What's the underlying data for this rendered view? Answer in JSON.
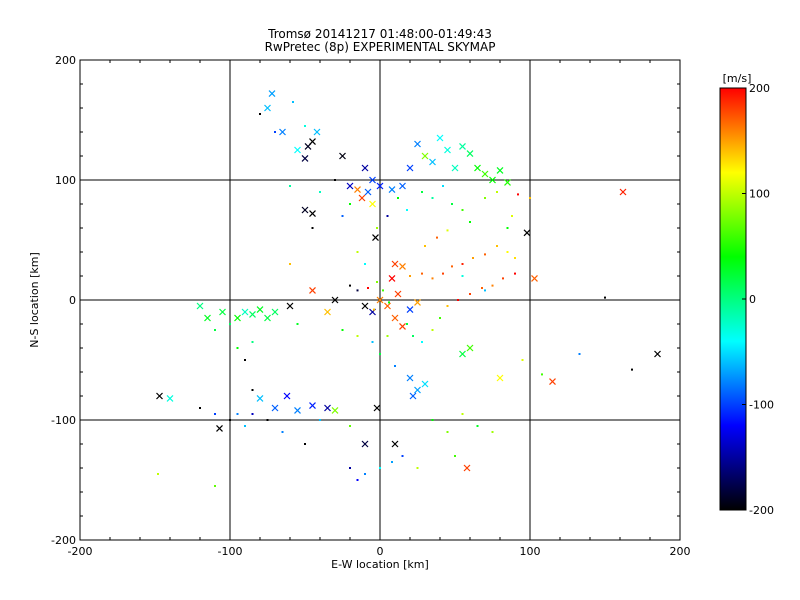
{
  "chart_data": {
    "type": "scatter",
    "title": "Tromsø 20141217 01:48:00-01:49:43",
    "subtitle": "RwPretec (8p) EXPERIMENTAL SKYMAP",
    "xlabel": "E-W location [km]",
    "ylabel": "N-S location [km]",
    "xlim": [
      -200,
      200
    ],
    "ylim": [
      -200,
      200
    ],
    "xticks": [
      -200,
      -100,
      0,
      100,
      200
    ],
    "yticks": [
      -200,
      -100,
      0,
      100,
      200
    ],
    "grid_lines": [
      -100,
      0,
      100
    ],
    "colorbar": {
      "label": "[m/s]",
      "range": [
        -200,
        200
      ],
      "ticks": [
        200,
        100,
        0,
        -100,
        -200
      ],
      "colors": [
        "#ff0000",
        "#ffff00",
        "#00ff00",
        "#00ffff",
        "#0000ff",
        "#000000"
      ]
    },
    "series": [
      {
        "name": "x-markers",
        "marker": "x",
        "points": [
          [
            -75,
            160,
            -60
          ],
          [
            -72,
            172,
            -70
          ],
          [
            -65,
            140,
            -80
          ],
          [
            -55,
            125,
            -40
          ],
          [
            -48,
            128,
            -190
          ],
          [
            -45,
            132,
            -200
          ],
          [
            -50,
            118,
            -180
          ],
          [
            -42,
            140,
            -60
          ],
          [
            -25,
            120,
            -195
          ],
          [
            -10,
            110,
            -150
          ],
          [
            -20,
            95,
            -140
          ],
          [
            -15,
            92,
            160
          ],
          [
            -12,
            85,
            180
          ],
          [
            -8,
            90,
            -90
          ],
          [
            -5,
            80,
            120
          ],
          [
            -50,
            75,
            -190
          ],
          [
            -45,
            72,
            -200
          ],
          [
            -3,
            52,
            -200
          ],
          [
            0,
            95,
            -110
          ],
          [
            -5,
            100,
            -100
          ],
          [
            8,
            92,
            -80
          ],
          [
            15,
            95,
            -90
          ],
          [
            20,
            110,
            -100
          ],
          [
            25,
            130,
            -80
          ],
          [
            30,
            120,
            80
          ],
          [
            35,
            115,
            -60
          ],
          [
            40,
            135,
            -40
          ],
          [
            45,
            125,
            -30
          ],
          [
            50,
            110,
            -20
          ],
          [
            55,
            128,
            -10
          ],
          [
            60,
            122,
            10
          ],
          [
            65,
            110,
            40
          ],
          [
            70,
            105,
            60
          ],
          [
            75,
            100,
            40
          ],
          [
            80,
            108,
            30
          ],
          [
            85,
            98,
            50
          ],
          [
            10,
            30,
            180
          ],
          [
            15,
            28,
            160
          ],
          [
            8,
            18,
            200
          ],
          [
            12,
            5,
            180
          ],
          [
            0,
            0,
            160
          ],
          [
            5,
            -5,
            170
          ],
          [
            -10,
            -5,
            -200
          ],
          [
            -5,
            -10,
            -150
          ],
          [
            10,
            -15,
            170
          ],
          [
            15,
            -22,
            180
          ],
          [
            20,
            -8,
            -100
          ],
          [
            25,
            -2,
            150
          ],
          [
            -30,
            0,
            -200
          ],
          [
            -35,
            -10,
            140
          ],
          [
            -45,
            8,
            180
          ],
          [
            98,
            56,
            -200
          ],
          [
            103,
            18,
            170
          ],
          [
            162,
            90,
            190
          ],
          [
            -60,
            -5,
            -200
          ],
          [
            -120,
            -5,
            0
          ],
          [
            -115,
            -15,
            30
          ],
          [
            -105,
            -10,
            20
          ],
          [
            -95,
            -15,
            40
          ],
          [
            -90,
            -10,
            -20
          ],
          [
            -85,
            -12,
            10
          ],
          [
            -80,
            -8,
            30
          ],
          [
            -75,
            -15,
            20
          ],
          [
            -70,
            -10,
            10
          ],
          [
            -140,
            -82,
            -30
          ],
          [
            -147,
            -80,
            -200
          ],
          [
            -107,
            -107,
            -200
          ],
          [
            -80,
            -82,
            -60
          ],
          [
            -70,
            -90,
            -90
          ],
          [
            -62,
            -80,
            -120
          ],
          [
            -55,
            -92,
            -80
          ],
          [
            -45,
            -88,
            -110
          ],
          [
            -35,
            -90,
            -150
          ],
          [
            -30,
            -92,
            80
          ],
          [
            -10,
            -120,
            -180
          ],
          [
            -2,
            -90,
            -200
          ],
          [
            10,
            -120,
            -200
          ],
          [
            20,
            -65,
            -80
          ],
          [
            25,
            -75,
            -70
          ],
          [
            22,
            -80,
            -90
          ],
          [
            30,
            -70,
            -50
          ],
          [
            55,
            -45,
            20
          ],
          [
            60,
            -40,
            60
          ],
          [
            80,
            -65,
            120
          ],
          [
            115,
            -68,
            180
          ],
          [
            185,
            -45,
            -200
          ],
          [
            58,
            -140,
            180
          ]
        ]
      },
      {
        "name": "dot-markers",
        "marker": "dot",
        "points": [
          [
            -80,
            155,
            -200
          ],
          [
            -70,
            140,
            -100
          ],
          [
            -58,
            165,
            -60
          ],
          [
            -50,
            145,
            -30
          ],
          [
            -60,
            95,
            -10
          ],
          [
            -40,
            90,
            -20
          ],
          [
            -30,
            100,
            -200
          ],
          [
            -20,
            80,
            40
          ],
          [
            -25,
            70,
            -90
          ],
          [
            -45,
            60,
            -200
          ],
          [
            -15,
            40,
            100
          ],
          [
            -10,
            30,
            -40
          ],
          [
            -60,
            30,
            140
          ],
          [
            -2,
            60,
            90
          ],
          [
            5,
            70,
            -150
          ],
          [
            12,
            85,
            40
          ],
          [
            18,
            75,
            -40
          ],
          [
            28,
            90,
            20
          ],
          [
            35,
            85,
            -10
          ],
          [
            42,
            95,
            -50
          ],
          [
            48,
            80,
            20
          ],
          [
            55,
            75,
            60
          ],
          [
            60,
            65,
            40
          ],
          [
            70,
            85,
            80
          ],
          [
            78,
            90,
            100
          ],
          [
            88,
            70,
            110
          ],
          [
            92,
            88,
            200
          ],
          [
            100,
            85,
            140
          ],
          [
            85,
            60,
            40
          ],
          [
            20,
            20,
            150
          ],
          [
            28,
            22,
            170
          ],
          [
            35,
            18,
            160
          ],
          [
            42,
            22,
            180
          ],
          [
            48,
            28,
            170
          ],
          [
            55,
            30,
            190
          ],
          [
            62,
            35,
            150
          ],
          [
            70,
            38,
            170
          ],
          [
            78,
            45,
            140
          ],
          [
            85,
            40,
            120
          ],
          [
            90,
            35,
            130
          ],
          [
            -20,
            12,
            -200
          ],
          [
            -15,
            8,
            -180
          ],
          [
            -8,
            10,
            200
          ],
          [
            -2,
            15,
            80
          ],
          [
            2,
            8,
            60
          ],
          [
            6,
            -2,
            40
          ],
          [
            -4,
            -8,
            140
          ],
          [
            18,
            -20,
            20
          ],
          [
            22,
            -30,
            10
          ],
          [
            28,
            -35,
            -40
          ],
          [
            35,
            -25,
            100
          ],
          [
            40,
            -15,
            60
          ],
          [
            45,
            -5,
            140
          ],
          [
            52,
            0,
            200
          ],
          [
            60,
            5,
            180
          ],
          [
            68,
            10,
            170
          ],
          [
            75,
            12,
            160
          ],
          [
            82,
            18,
            180
          ],
          [
            90,
            22,
            200
          ],
          [
            5,
            -30,
            90
          ],
          [
            -5,
            -35,
            -60
          ],
          [
            -15,
            -30,
            100
          ],
          [
            -25,
            -25,
            40
          ],
          [
            0,
            -45,
            20
          ],
          [
            10,
            -55,
            -80
          ],
          [
            -55,
            -20,
            30
          ],
          [
            -100,
            -20,
            10
          ],
          [
            -110,
            -25,
            20
          ],
          [
            -95,
            -40,
            40
          ],
          [
            -85,
            -35,
            0
          ],
          [
            -120,
            -90,
            -200
          ],
          [
            -110,
            -95,
            -100
          ],
          [
            -100,
            -100,
            -200
          ],
          [
            -95,
            -95,
            -80
          ],
          [
            -90,
            -105,
            -60
          ],
          [
            -85,
            -95,
            -140
          ],
          [
            -75,
            -100,
            -200
          ],
          [
            -65,
            -110,
            -80
          ],
          [
            -50,
            -120,
            -200
          ],
          [
            -40,
            -100,
            -60
          ],
          [
            -20,
            -105,
            70
          ],
          [
            -20,
            -140,
            -150
          ],
          [
            -10,
            -145,
            -80
          ],
          [
            0,
            -140,
            -40
          ],
          [
            8,
            -135,
            -70
          ],
          [
            15,
            -130,
            -100
          ],
          [
            25,
            -140,
            100
          ],
          [
            35,
            -100,
            40
          ],
          [
            45,
            -110,
            80
          ],
          [
            55,
            -95,
            100
          ],
          [
            65,
            -105,
            30
          ],
          [
            75,
            -110,
            90
          ],
          [
            50,
            -130,
            60
          ],
          [
            -148,
            -145,
            100
          ],
          [
            -110,
            -155,
            70
          ],
          [
            -15,
            -150,
            -120
          ],
          [
            150,
            2,
            -200
          ],
          [
            168,
            -58,
            -200
          ],
          [
            133,
            -45,
            -80
          ],
          [
            108,
            -62,
            60
          ],
          [
            95,
            -50,
            110
          ],
          [
            -90,
            -50,
            -200
          ],
          [
            -85,
            -75,
            -200
          ],
          [
            70,
            8,
            -60
          ],
          [
            55,
            20,
            -30
          ],
          [
            30,
            45,
            140
          ],
          [
            38,
            52,
            170
          ],
          [
            45,
            58,
            110
          ]
        ]
      }
    ]
  }
}
